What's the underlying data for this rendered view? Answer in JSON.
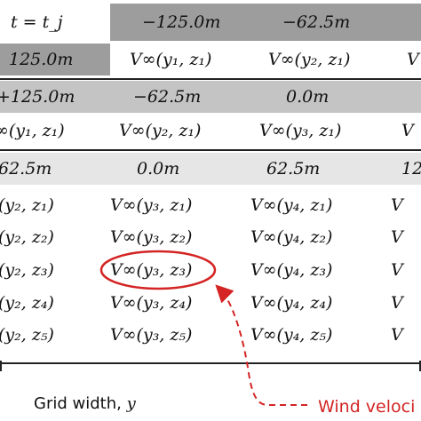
{
  "colors": {
    "band_dark": "#9d9d9d",
    "band_mid": "#c4c4c4",
    "band_light": "#e6e6e6",
    "highlight": "#d42424",
    "line": "#222222"
  },
  "tier1": {
    "time_label": "t = t_j",
    "header_positions": [
      "−125.0m",
      "−62.5m"
    ],
    "row_position": "125.0m",
    "row_values": [
      "V∞(y₁, z₁)",
      "V∞(y₂, z₁)",
      "V"
    ]
  },
  "tier2": {
    "header_positions": [
      "+125.0m",
      "−62.5m",
      "0.0m"
    ],
    "row_values": [
      "∞(y₁, z₁)",
      "V∞(y₂, z₁)",
      "V∞(y₃, z₁)",
      "V"
    ]
  },
  "tier3": {
    "header_positions": [
      "62.5m",
      "0.0m",
      "62.5m",
      "12"
    ],
    "rows": [
      [
        "(y₂, z₁)",
        "V∞(y₃, z₁)",
        "V∞(y₄, z₁)",
        "V"
      ],
      [
        "(y₂, z₂)",
        "V∞(y₃, z₂)",
        "V∞(y₄, z₂)",
        "V"
      ],
      [
        "(y₂, z₃)",
        "V∞(y₃, z₃)",
        "V∞(y₄, z₃)",
        "V"
      ],
      [
        "(y₂, z₄)",
        "V∞(y₃, z₄)",
        "V∞(y₄, z₄)",
        "V"
      ],
      [
        "(y₂, z₅)",
        "V∞(y₃, z₅)",
        "V∞(y₄, z₅)",
        "V"
      ]
    ]
  },
  "labels": {
    "grid_width": "Grid width, ",
    "grid_width_var": "y",
    "wind_velocity": "Wind veloci"
  }
}
